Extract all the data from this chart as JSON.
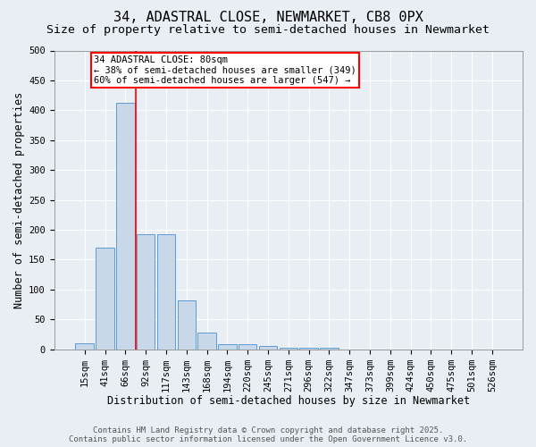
{
  "title": "34, ADASTRAL CLOSE, NEWMARKET, CB8 0PX",
  "subtitle": "Size of property relative to semi-detached houses in Newmarket",
  "xlabel": "Distribution of semi-detached houses by size in Newmarket",
  "ylabel": "Number of semi-detached properties",
  "categories": [
    "15sqm",
    "41sqm",
    "66sqm",
    "92sqm",
    "117sqm",
    "143sqm",
    "168sqm",
    "194sqm",
    "220sqm",
    "245sqm",
    "271sqm",
    "296sqm",
    "322sqm",
    "347sqm",
    "373sqm",
    "399sqm",
    "424sqm",
    "450sqm",
    "475sqm",
    "501sqm",
    "526sqm"
  ],
  "values": [
    10,
    170,
    412,
    193,
    193,
    82,
    28,
    8,
    8,
    5,
    3,
    3,
    3,
    0,
    0,
    0,
    0,
    0,
    0,
    0,
    0
  ],
  "bar_color": "#c8d8e8",
  "bar_edge_color": "#5b9bd5",
  "red_line_x": 2.5,
  "annotation_line1": "34 ADASTRAL CLOSE: 80sqm",
  "annotation_line2": "← 38% of semi-detached houses are smaller (349)",
  "annotation_line3": "60% of semi-detached houses are larger (547) →",
  "ylim": [
    0,
    500
  ],
  "yticks": [
    0,
    50,
    100,
    150,
    200,
    250,
    300,
    350,
    400,
    450,
    500
  ],
  "footer_line1": "Contains HM Land Registry data © Crown copyright and database right 2025.",
  "footer_line2": "Contains public sector information licensed under the Open Government Licence v3.0.",
  "background_color": "#e8eef4",
  "plot_background": "#e8eef4",
  "title_fontsize": 11,
  "subtitle_fontsize": 9.5,
  "xlabel_fontsize": 8.5,
  "ylabel_fontsize": 8.5,
  "tick_fontsize": 7.5,
  "annot_fontsize": 7.5,
  "footer_fontsize": 6.5
}
